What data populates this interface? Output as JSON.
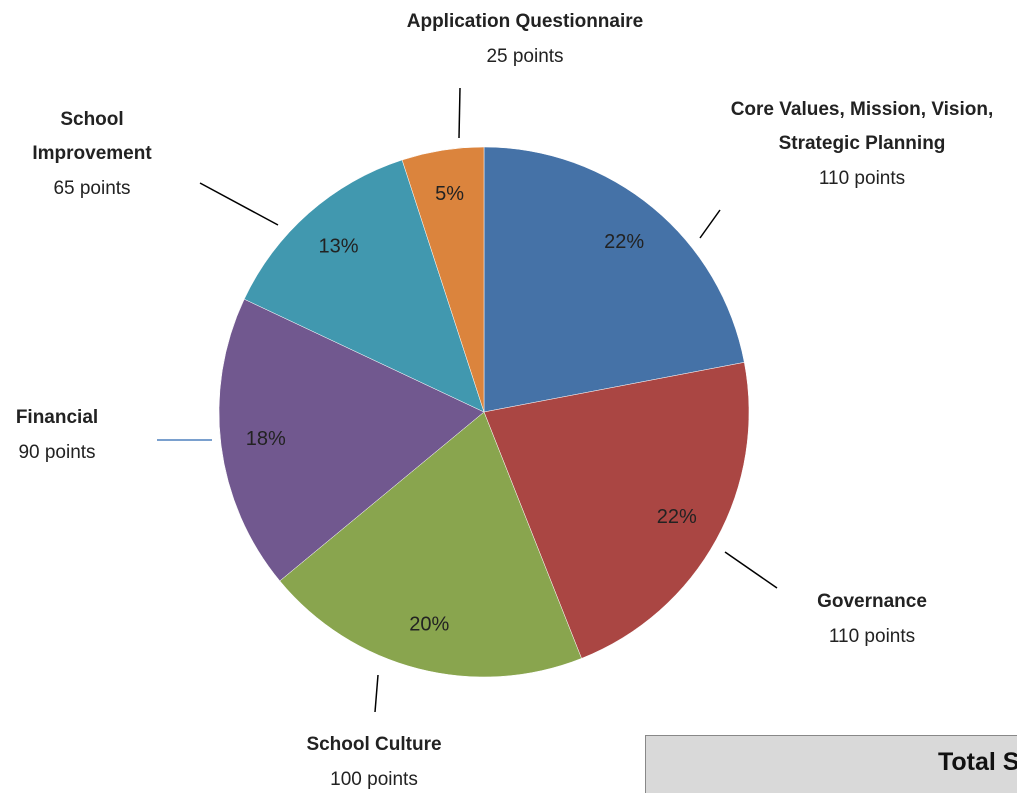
{
  "chart_data": {
    "type": "pie",
    "categories": [
      "Core Values, Mission, Vision, Strategic Planning",
      "Governance",
      "School Culture",
      "Financial",
      "School Improvement",
      "Application Questionnaire"
    ],
    "point_labels": [
      "110 points",
      "110 points",
      "100 points",
      "90 points",
      "65 points",
      "25 points"
    ],
    "values": [
      22,
      22,
      20,
      18,
      13,
      5
    ],
    "value_labels": [
      "22%",
      "22%",
      "20%",
      "18%",
      "13%",
      "5%"
    ],
    "colors": [
      "#4572a7",
      "#aa4643",
      "#89a54e",
      "#71588f",
      "#4198af",
      "#db843d"
    ],
    "box_title": "Total Score"
  }
}
